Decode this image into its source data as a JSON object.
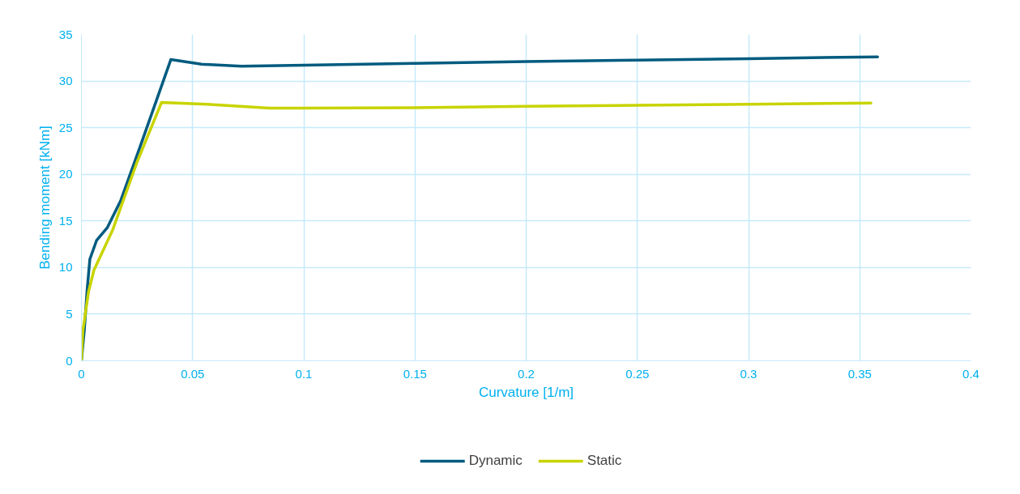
{
  "chart_data": {
    "type": "line",
    "xlabel": "Curvature [1/m]",
    "ylabel": "Bending moment [kNm]",
    "xlim": [
      0,
      0.4
    ],
    "ylim": [
      0,
      35
    ],
    "xticks": [
      0,
      0.05,
      0.1,
      0.15,
      0.2,
      0.25,
      0.3,
      0.35,
      0.4
    ],
    "yticks": [
      0,
      5,
      10,
      15,
      20,
      25,
      30,
      35
    ],
    "grid": true,
    "legend": "bottom",
    "marker": "none",
    "line_style": "solid",
    "series": [
      {
        "name": "Dynamic",
        "color": "#005b7f",
        "x": [
          0,
          0.0013,
          0.0026,
          0.0038,
          0.0068,
          0.0117,
          0.0177,
          0.026,
          0.0402,
          0.054,
          0.072,
          0.1,
          0.15,
          0.2,
          0.25,
          0.3,
          0.358
        ],
        "values": [
          0,
          3.3,
          7.7,
          10.9,
          12.9,
          14.3,
          17.2,
          22.7,
          32.3,
          31.8,
          31.6,
          31.7,
          31.9,
          32.1,
          32.25,
          32.4,
          32.6
        ]
      },
      {
        "name": "Static",
        "color": "#c8d400",
        "x": [
          0,
          0.0007,
          0.0032,
          0.0056,
          0.014,
          0.025,
          0.036,
          0.0565,
          0.0845,
          0.1,
          0.15,
          0.2,
          0.25,
          0.3,
          0.355
        ],
        "values": [
          0,
          3.3,
          7.4,
          9.7,
          14.0,
          21.3,
          27.7,
          27.5,
          27.1,
          27.1,
          27.15,
          27.3,
          27.4,
          27.5,
          27.65
        ]
      }
    ]
  }
}
